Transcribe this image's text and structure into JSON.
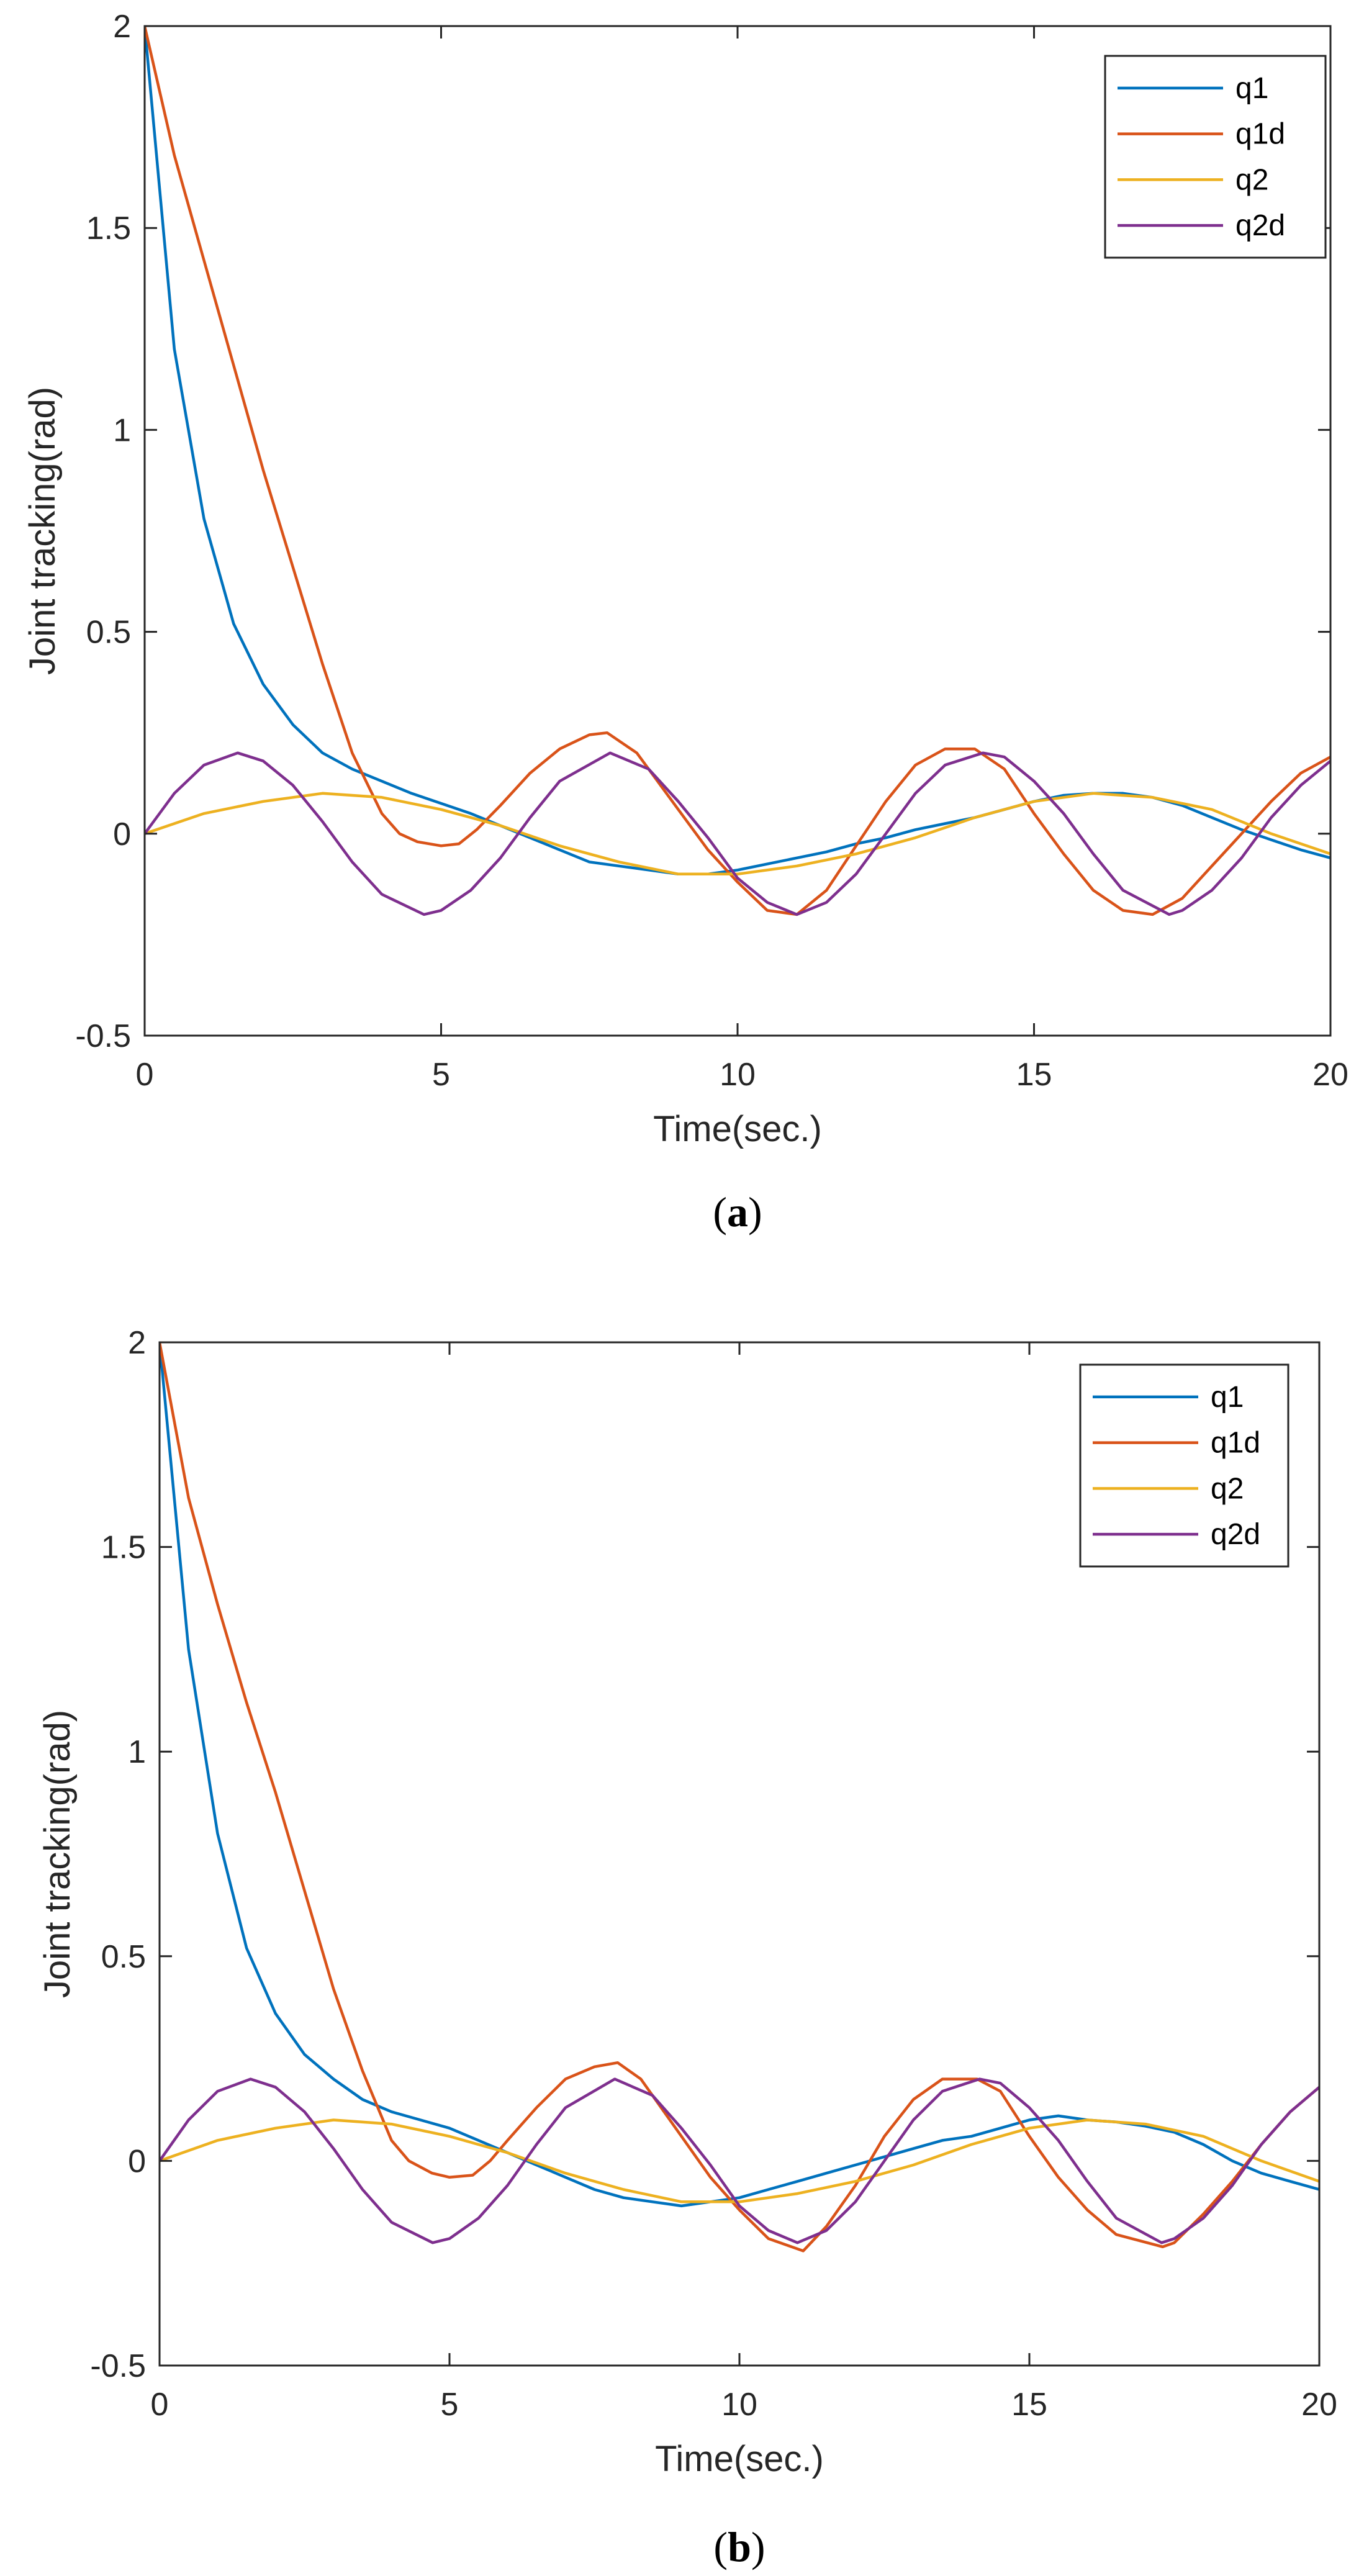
{
  "colors": {
    "q1": "#0072BD",
    "q1d": "#D95319",
    "q2": "#EDB120",
    "q2d": "#7E2F8E",
    "axis": "#262626"
  },
  "chart_data": [
    {
      "panel": "a",
      "caption_letter": "a",
      "type": "line",
      "xlabel": "Time(sec.)",
      "ylabel": "Joint tracking(rad)",
      "xlim": [
        0,
        20
      ],
      "ylim": [
        -0.5,
        2
      ],
      "xticks": [
        0,
        5,
        10,
        15,
        20
      ],
      "xtick_labels": [
        "0",
        "5",
        "10",
        "15",
        "20"
      ],
      "yticks": [
        -0.5,
        0,
        0.5,
        1,
        1.5,
        2
      ],
      "ytick_labels": [
        "-0.5",
        "0",
        "0.5",
        "1",
        "1.5",
        "2"
      ],
      "legend_position": "top-right",
      "series": [
        {
          "name": "q1",
          "color_key": "q1",
          "x": [
            0,
            0.5,
            1,
            1.5,
            2,
            2.5,
            3,
            3.5,
            4,
            4.5,
            5,
            5.5,
            6,
            6.5,
            7,
            7.5,
            8,
            8.5,
            9,
            9.5,
            10,
            10.5,
            11,
            11.5,
            12,
            12.5,
            13,
            13.5,
            14,
            14.5,
            15,
            15.5,
            16,
            16.5,
            17,
            17.5,
            18,
            18.5,
            19,
            19.5,
            20
          ],
          "y": [
            2.0,
            1.2,
            0.78,
            0.52,
            0.37,
            0.27,
            0.2,
            0.16,
            0.13,
            0.1,
            0.075,
            0.05,
            0.02,
            -0.01,
            -0.04,
            -0.07,
            -0.08,
            -0.09,
            -0.1,
            -0.1,
            -0.09,
            -0.075,
            -0.06,
            -0.045,
            -0.025,
            -0.01,
            0.01,
            0.025,
            0.04,
            0.06,
            0.08,
            0.095,
            0.1,
            0.1,
            0.09,
            0.07,
            0.04,
            0.01,
            -0.015,
            -0.04,
            -0.06
          ]
        },
        {
          "name": "q1d",
          "color_key": "q1d",
          "x": [
            0,
            0.5,
            1,
            1.5,
            2,
            2.5,
            3,
            3.5,
            4,
            4.3,
            4.6,
            5,
            5.3,
            5.6,
            6,
            6.5,
            7,
            7.5,
            7.8,
            8.3,
            9,
            9.5,
            10,
            10.5,
            11,
            11.5,
            12,
            12.5,
            13,
            13.5,
            14,
            14.5,
            15,
            15.5,
            16,
            16.5,
            17,
            17.5,
            18,
            18.5,
            19,
            19.5,
            20
          ],
          "y": [
            2.0,
            1.68,
            1.42,
            1.16,
            0.9,
            0.66,
            0.42,
            0.2,
            0.05,
            0.0,
            -0.02,
            -0.03,
            -0.025,
            0.01,
            0.07,
            0.15,
            0.21,
            0.245,
            0.25,
            0.2,
            0.06,
            -0.04,
            -0.12,
            -0.19,
            -0.2,
            -0.14,
            -0.03,
            0.08,
            0.17,
            0.21,
            0.21,
            0.16,
            0.05,
            -0.05,
            -0.14,
            -0.19,
            -0.2,
            -0.16,
            -0.08,
            0.0,
            0.08,
            0.15,
            0.19
          ]
        },
        {
          "name": "q2",
          "color_key": "q2",
          "x": [
            0,
            1,
            2,
            3,
            4,
            5,
            6,
            7,
            8,
            9,
            10,
            11,
            12,
            13,
            14,
            15,
            16,
            17,
            18,
            19,
            20
          ],
          "y": [
            0.0,
            0.05,
            0.08,
            0.1,
            0.09,
            0.06,
            0.02,
            -0.03,
            -0.07,
            -0.1,
            -0.1,
            -0.08,
            -0.05,
            -0.01,
            0.04,
            0.08,
            0.1,
            0.09,
            0.06,
            0.0,
            -0.05
          ]
        },
        {
          "name": "q2d",
          "color_key": "q2d",
          "x": [
            0,
            0.5,
            1,
            1.57,
            2,
            2.5,
            3,
            3.5,
            4,
            4.71,
            5,
            5.5,
            6,
            6.5,
            7,
            7.85,
            8.5,
            9,
            9.5,
            10,
            10.5,
            11,
            11.5,
            12,
            12.5,
            13,
            13.5,
            14.14,
            14.5,
            15,
            15.5,
            16,
            16.5,
            17.28,
            17.5,
            18,
            18.5,
            19,
            19.5,
            20
          ],
          "y": [
            0.0,
            0.1,
            0.17,
            0.2,
            0.18,
            0.12,
            0.03,
            -0.07,
            -0.15,
            -0.2,
            -0.19,
            -0.14,
            -0.06,
            0.04,
            0.13,
            0.2,
            0.16,
            0.08,
            -0.01,
            -0.11,
            -0.17,
            -0.2,
            -0.17,
            -0.1,
            0.0,
            0.1,
            0.17,
            0.2,
            0.19,
            0.13,
            0.05,
            -0.05,
            -0.14,
            -0.2,
            -0.19,
            -0.14,
            -0.06,
            0.04,
            0.12,
            0.18
          ]
        }
      ]
    },
    {
      "panel": "b",
      "caption_letter": "b",
      "type": "line",
      "xlabel": "Time(sec.)",
      "ylabel": "Joint tracking(rad)",
      "xlim": [
        0,
        20
      ],
      "ylim": [
        -0.5,
        2
      ],
      "xticks": [
        0,
        5,
        10,
        15,
        20
      ],
      "xtick_labels": [
        "0",
        "5",
        "10",
        "15",
        "20"
      ],
      "yticks": [
        -0.5,
        0,
        0.5,
        1,
        1.5,
        2
      ],
      "ytick_labels": [
        "-0.5",
        "0",
        "0.5",
        "1",
        "1.5",
        "2"
      ],
      "legend_position": "top-right",
      "series": [
        {
          "name": "q1",
          "color_key": "q1",
          "x": [
            0,
            0.5,
            1,
            1.5,
            2,
            2.5,
            3,
            3.5,
            4,
            4.5,
            5,
            5.5,
            6,
            6.5,
            7,
            7.5,
            8,
            8.5,
            9,
            9.5,
            10,
            10.5,
            11,
            11.5,
            12,
            12.5,
            13,
            13.5,
            14,
            14.5,
            15,
            15.5,
            16,
            16.5,
            17,
            17.5,
            18,
            18.5,
            19,
            19.5,
            20
          ],
          "y": [
            2.0,
            1.25,
            0.8,
            0.52,
            0.36,
            0.26,
            0.2,
            0.15,
            0.12,
            0.1,
            0.08,
            0.05,
            0.02,
            -0.01,
            -0.04,
            -0.07,
            -0.09,
            -0.1,
            -0.11,
            -0.1,
            -0.09,
            -0.07,
            -0.05,
            -0.03,
            -0.01,
            0.01,
            0.03,
            0.05,
            0.06,
            0.08,
            0.1,
            0.11,
            0.1,
            0.095,
            0.085,
            0.07,
            0.04,
            0.0,
            -0.03,
            -0.05,
            -0.07
          ]
        },
        {
          "name": "q1d",
          "color_key": "q1d",
          "x": [
            0,
            0.5,
            1,
            1.5,
            2,
            2.5,
            3,
            3.5,
            4,
            4.3,
            4.7,
            5,
            5.4,
            5.7,
            6,
            6.5,
            7,
            7.5,
            7.9,
            8.3,
            9,
            9.5,
            10,
            10.5,
            11.1,
            11.5,
            12,
            12.5,
            13,
            13.5,
            14.1,
            14.5,
            15,
            15.5,
            16,
            16.5,
            17.3,
            17.5,
            18,
            18.5,
            19,
            19.5,
            20
          ],
          "y": [
            2.0,
            1.62,
            1.36,
            1.12,
            0.9,
            0.66,
            0.42,
            0.22,
            0.05,
            0.0,
            -0.03,
            -0.04,
            -0.035,
            0.0,
            0.05,
            0.13,
            0.2,
            0.23,
            0.24,
            0.2,
            0.06,
            -0.04,
            -0.12,
            -0.19,
            -0.22,
            -0.16,
            -0.06,
            0.06,
            0.15,
            0.2,
            0.2,
            0.17,
            0.06,
            -0.04,
            -0.12,
            -0.18,
            -0.21,
            -0.2,
            -0.13,
            -0.05,
            0.04,
            0.12,
            0.18
          ]
        },
        {
          "name": "q2",
          "color_key": "q2",
          "x": [
            0,
            1,
            2,
            3,
            4,
            5,
            6,
            7,
            8,
            9,
            10,
            11,
            12,
            13,
            14,
            15,
            16,
            17,
            18,
            19,
            20
          ],
          "y": [
            0.0,
            0.05,
            0.08,
            0.1,
            0.09,
            0.06,
            0.02,
            -0.03,
            -0.07,
            -0.1,
            -0.1,
            -0.08,
            -0.05,
            -0.01,
            0.04,
            0.08,
            0.1,
            0.09,
            0.06,
            0.0,
            -0.05
          ]
        },
        {
          "name": "q2d",
          "color_key": "q2d",
          "x": [
            0,
            0.5,
            1,
            1.57,
            2,
            2.5,
            3,
            3.5,
            4,
            4.71,
            5,
            5.5,
            6,
            6.5,
            7,
            7.85,
            8.5,
            9,
            9.5,
            10,
            10.5,
            11,
            11.5,
            12,
            12.5,
            13,
            13.5,
            14.14,
            14.5,
            15,
            15.5,
            16,
            16.5,
            17.28,
            17.5,
            18,
            18.5,
            19,
            19.5,
            20
          ],
          "y": [
            0.0,
            0.1,
            0.17,
            0.2,
            0.18,
            0.12,
            0.03,
            -0.07,
            -0.15,
            -0.2,
            -0.19,
            -0.14,
            -0.06,
            0.04,
            0.13,
            0.2,
            0.16,
            0.08,
            -0.01,
            -0.11,
            -0.17,
            -0.2,
            -0.17,
            -0.1,
            0.0,
            0.1,
            0.17,
            0.2,
            0.19,
            0.13,
            0.05,
            -0.05,
            -0.14,
            -0.2,
            -0.19,
            -0.14,
            -0.06,
            0.04,
            0.12,
            0.18
          ]
        }
      ]
    }
  ]
}
